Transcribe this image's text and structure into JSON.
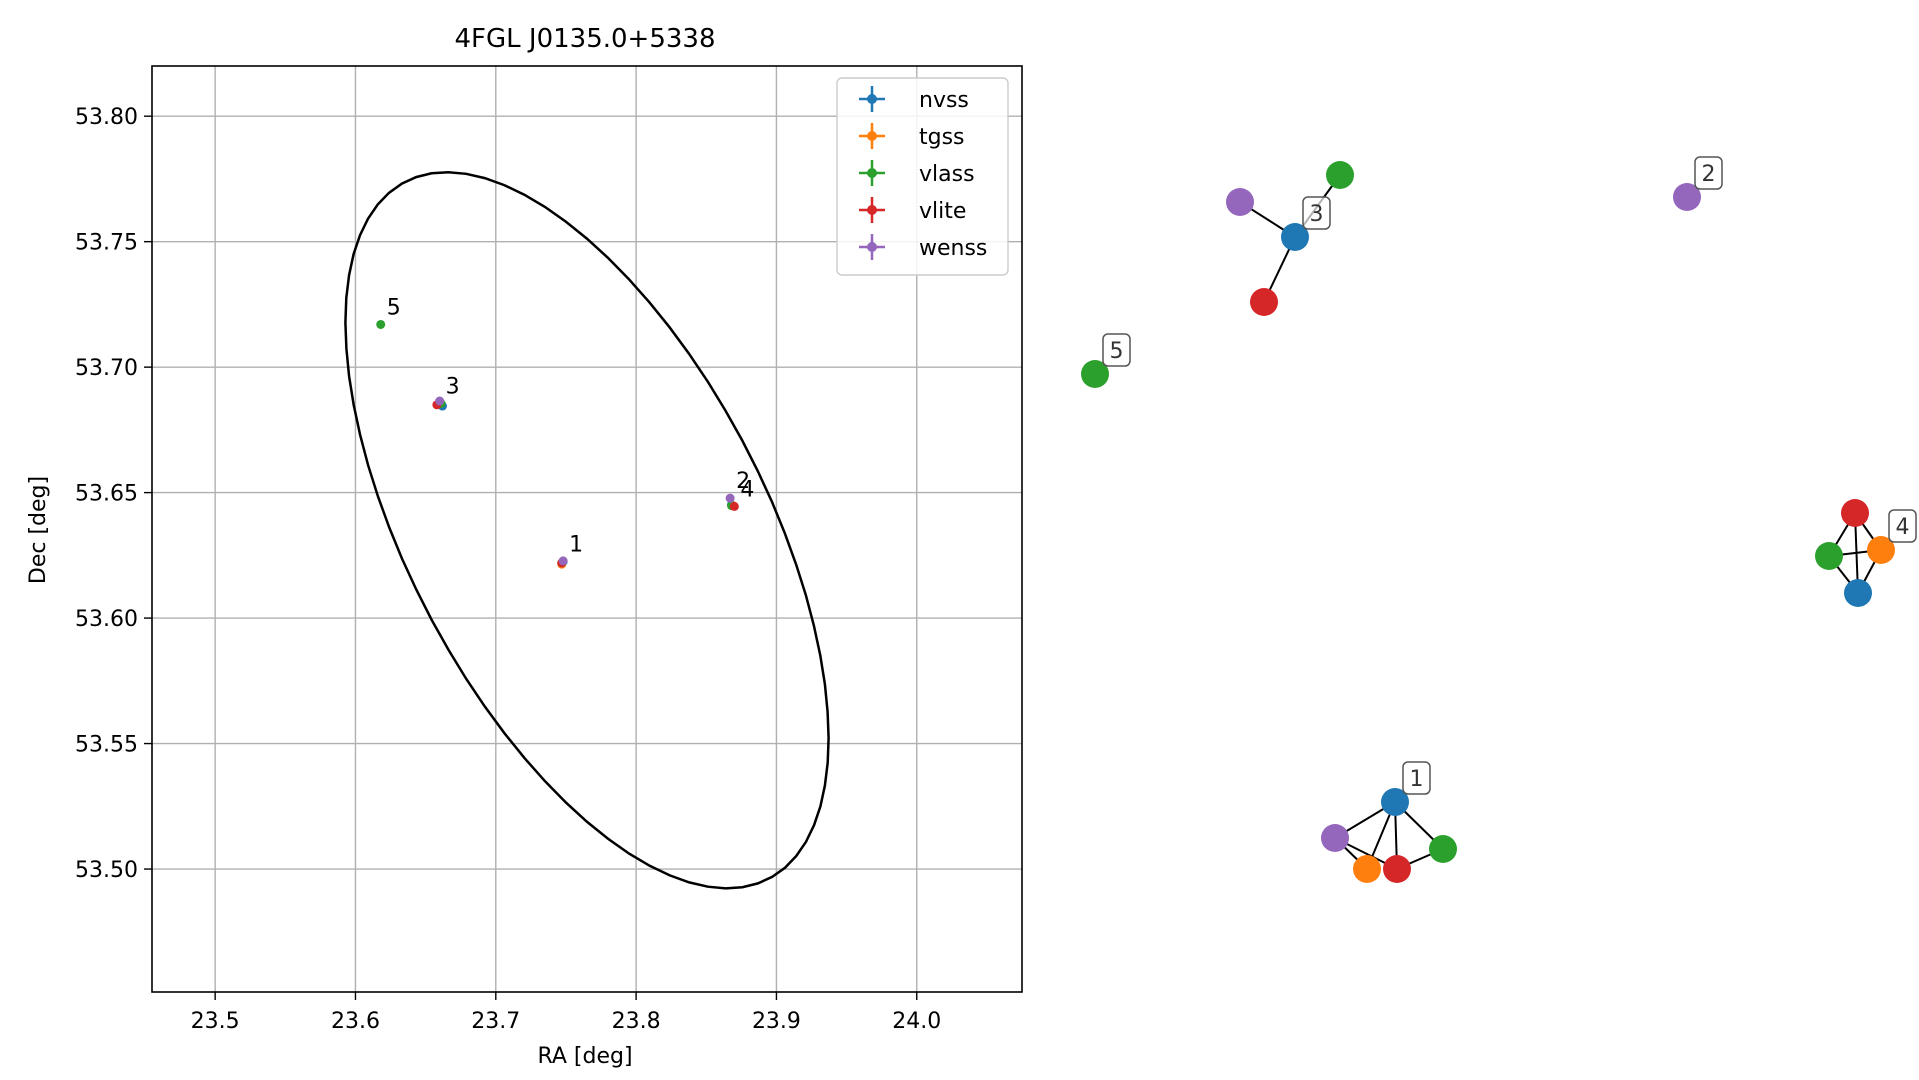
{
  "chart_data": [
    {
      "type": "scatter",
      "title": "4FGL J0135.0+5338",
      "xlabel": "RA [deg]",
      "ylabel": "Dec [deg]",
      "xlim": [
        23.455,
        24.075
      ],
      "ylim": [
        53.451,
        53.82
      ],
      "xticks": [
        "23.5",
        "23.6",
        "23.7",
        "23.8",
        "23.9",
        "24.0"
      ],
      "xtick_values": [
        23.5,
        23.6,
        23.7,
        23.8,
        23.9,
        24.0
      ],
      "yticks": [
        "53.50",
        "53.55",
        "53.60",
        "53.65",
        "53.70",
        "53.75",
        "53.80"
      ],
      "ytick_values": [
        53.5,
        53.55,
        53.6,
        53.65,
        53.7,
        53.75,
        53.8
      ],
      "grid": true,
      "legend_position": "top-right",
      "series": [
        {
          "name": "nvss",
          "color": "#1f77b4",
          "points": [
            [
              23.748,
              53.6225
            ],
            [
              23.662,
              53.6845
            ],
            [
              23.868,
              53.6452
            ]
          ]
        },
        {
          "name": "tgss",
          "color": "#ff7f0e",
          "points": [
            [
              23.747,
              53.6215
            ],
            [
              23.869,
              53.6448
            ]
          ]
        },
        {
          "name": "vlass",
          "color": "#2ca02c",
          "points": [
            [
              23.747,
              53.622
            ],
            [
              23.661,
              53.6855
            ],
            [
              23.618,
              53.717
            ],
            [
              23.868,
              53.6448
            ]
          ]
        },
        {
          "name": "vlite",
          "color": "#d62728",
          "points": [
            [
              23.747,
              53.622
            ],
            [
              23.658,
              53.685
            ],
            [
              23.87,
              53.6445
            ]
          ]
        },
        {
          "name": "wenss",
          "color": "#9467bd",
          "points": [
            [
              23.748,
              53.6228
            ],
            [
              23.66,
              53.6865
            ],
            [
              23.867,
              53.6478
            ]
          ]
        }
      ],
      "annotations": [
        {
          "text": "1",
          "x": 23.748,
          "y": 53.6225
        },
        {
          "text": "3",
          "x": 23.66,
          "y": 53.6855
        },
        {
          "text": "5",
          "x": 23.618,
          "y": 53.717
        },
        {
          "text": "2",
          "x": 23.867,
          "y": 53.6478
        },
        {
          "text": "4",
          "x": 23.87,
          "y": 53.6445
        }
      ],
      "ellipse": {
        "center": [
          23.765,
          53.635
        ],
        "semi_axes_deg": [
          0.2,
          0.1
        ],
        "angle_deg": -36
      }
    },
    {
      "type": "graph",
      "groups": [
        {
          "label": "1",
          "nodes": [
            {
              "id": "1n",
              "catalog": "nvss"
            },
            {
              "id": "1t",
              "catalog": "tgss"
            },
            {
              "id": "1v",
              "catalog": "vlass"
            },
            {
              "id": "1l",
              "catalog": "vlite"
            },
            {
              "id": "1w",
              "catalog": "wenss"
            }
          ],
          "edges": [
            [
              "1n",
              "1t"
            ],
            [
              "1n",
              "1v"
            ],
            [
              "1n",
              "1l"
            ],
            [
              "1n",
              "1w"
            ],
            [
              "1t",
              "1w"
            ],
            [
              "1l",
              "1w"
            ],
            [
              "1v",
              "1l"
            ]
          ]
        },
        {
          "label": "2",
          "nodes": [
            {
              "id": "2w",
              "catalog": "wenss"
            }
          ],
          "edges": []
        },
        {
          "label": "3",
          "nodes": [
            {
              "id": "3n",
              "catalog": "nvss"
            },
            {
              "id": "3v",
              "catalog": "vlass"
            },
            {
              "id": "3l",
              "catalog": "vlite"
            },
            {
              "id": "3w",
              "catalog": "wenss"
            }
          ],
          "edges": [
            [
              "3n",
              "3v"
            ],
            [
              "3n",
              "3l"
            ],
            [
              "3n",
              "3w"
            ]
          ]
        },
        {
          "label": "4",
          "nodes": [
            {
              "id": "4n",
              "catalog": "nvss"
            },
            {
              "id": "4t",
              "catalog": "tgss"
            },
            {
              "id": "4v",
              "catalog": "vlass"
            },
            {
              "id": "4l",
              "catalog": "vlite"
            }
          ],
          "edges": [
            [
              "4n",
              "4t"
            ],
            [
              "4n",
              "4v"
            ],
            [
              "4n",
              "4l"
            ],
            [
              "4t",
              "4v"
            ],
            [
              "4t",
              "4l"
            ],
            [
              "4v",
              "4l"
            ]
          ]
        },
        {
          "label": "5",
          "nodes": [
            {
              "id": "5v",
              "catalog": "vlass"
            }
          ],
          "edges": []
        }
      ]
    }
  ]
}
